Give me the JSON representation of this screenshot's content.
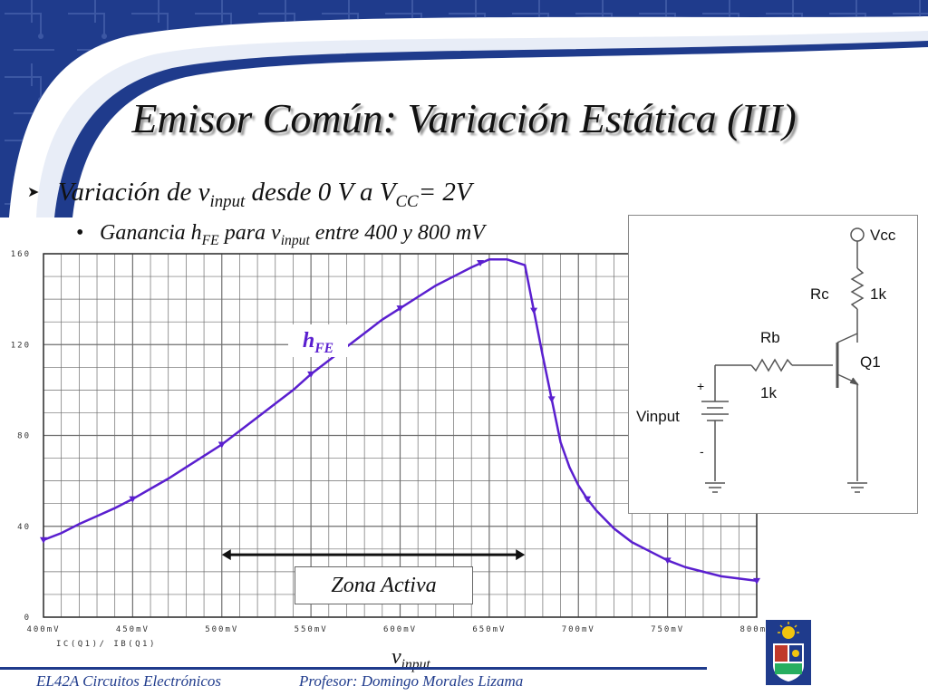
{
  "slide": {
    "title": "Emisor Común: Variación Estática (III)",
    "bullet1": {
      "text_a": "Variación de v",
      "sub_a": "input",
      "text_b": " desde 0 V a V",
      "sub_b": "CC",
      "text_c": "= 2V"
    },
    "bullet2": {
      "text_a": "Ganancia h",
      "sub_a": "FE",
      "text_b": " para v",
      "sub_b": "input",
      "text_c": " entre 400 y 800 mV"
    },
    "xaxis_label": {
      "main": "v",
      "sub": "input"
    },
    "footer": {
      "course": "EL42A Circuitos Electrónicos",
      "professor": "Profesor: Domingo Morales Lizama"
    }
  },
  "annotations": {
    "hfe": {
      "main": "h",
      "sub": "FE"
    },
    "zona_activa": "Zona Activa",
    "zona_range_mV": [
      500,
      670
    ]
  },
  "circuit": {
    "vcc": "Vcc",
    "rc": "Rc",
    "rc_value": "1k",
    "rb": "Rb",
    "rb_value": "1k",
    "q": "Q1",
    "vinput": "Vinput",
    "plus": "+",
    "minus": "-"
  },
  "colors": {
    "trace": "#5a1fcf",
    "banner": "#1f3b8c",
    "grid": "#6e6e6e"
  },
  "chart_data": {
    "type": "line",
    "xlim": [
      400,
      800
    ],
    "ylim": [
      0,
      160
    ],
    "xticks": [
      400,
      450,
      500,
      550,
      600,
      650,
      700,
      750,
      800
    ],
    "xtick_labels": [
      "400mV",
      "450mV",
      "500mV",
      "550mV",
      "600mV",
      "650mV",
      "700mV",
      "750mV",
      "800mV"
    ],
    "yticks": [
      0,
      40,
      80,
      120,
      160
    ],
    "ytick_labels": [
      "0",
      "40",
      "80",
      "120",
      "160"
    ],
    "grid": true,
    "legend": {
      "position": "bottom-left",
      "entries": [
        "IC(Q1)/ IB(Q1)"
      ]
    },
    "series": [
      {
        "name": "IC(Q1)/ IB(Q1)",
        "x": [
          400,
          410,
          420,
          430,
          440,
          450,
          460,
          470,
          480,
          490,
          500,
          510,
          520,
          530,
          540,
          550,
          560,
          570,
          580,
          590,
          600,
          610,
          620,
          630,
          640,
          650,
          660,
          670,
          675,
          680,
          685,
          690,
          695,
          700,
          705,
          710,
          720,
          730,
          740,
          750,
          760,
          770,
          780,
          790,
          800
        ],
        "y": [
          34,
          37,
          41,
          44.5,
          48,
          52,
          56.5,
          61,
          66,
          71,
          76,
          82,
          88,
          94,
          100,
          107,
          113,
          119,
          125,
          131,
          136,
          141,
          146,
          150,
          154,
          158,
          162,
          155,
          135,
          115,
          96,
          77,
          66,
          58,
          52,
          47,
          39,
          33,
          29,
          25,
          22,
          20,
          18,
          17,
          16
        ]
      }
    ],
    "markers_x": [
      400,
      450,
      500,
      550,
      600,
      645,
      675,
      685,
      705,
      750,
      800
    ]
  }
}
